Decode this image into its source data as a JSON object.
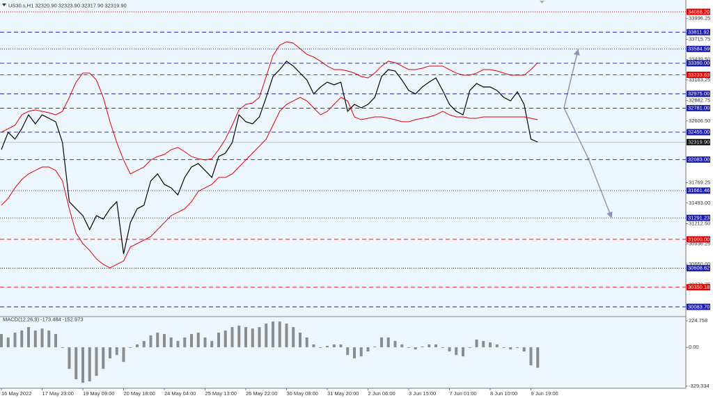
{
  "chart_data": [
    {
      "type": "line",
      "title": "US30.s,H1 32320.90 32323.90 32317.90 32319.90",
      "categories": [
        "16 May 2022",
        null,
        null,
        null,
        null,
        null,
        "17 May 23:00",
        null,
        null,
        null,
        null,
        null,
        "19 May 09:00",
        null,
        null,
        null,
        null,
        null,
        "20 May 18:00",
        null,
        null,
        null,
        null,
        null,
        "24 May 04:00",
        null,
        null,
        null,
        null,
        null,
        "25 May 13:00",
        null,
        null,
        null,
        null,
        null,
        "26 May 22:00",
        null,
        null,
        null,
        null,
        null,
        "30 May 08:00",
        null,
        null,
        null,
        null,
        null,
        "31 May 20:00",
        null,
        null,
        null,
        null,
        null,
        "2 Jun 06:00",
        null,
        null,
        null,
        null,
        null,
        "3 Jun 15:00",
        null,
        null,
        null,
        null,
        null,
        "7 Jun 01:00",
        null,
        null,
        null,
        null,
        null,
        "8 Jun 10:00",
        null,
        null,
        null,
        null,
        null,
        "9 Jun 19:00",
        null
      ],
      "series": [
        {
          "color": "#000000",
          "values": [
            32218,
            32454,
            32360,
            32502,
            32690,
            32568,
            32690,
            32643,
            32596,
            32313,
            31510,
            31415,
            31321,
            31132,
            31321,
            31274,
            31415,
            31510,
            30802,
            31227,
            31415,
            31463,
            31793,
            31888,
            31746,
            31699,
            31604,
            31840,
            31982,
            32029,
            31935,
            31840,
            32124,
            32171,
            32313,
            32690,
            32596,
            32568,
            32662,
            32927,
            33210,
            33304,
            33418,
            33352,
            33257,
            33163,
            32974,
            33068,
            33134,
            33097,
            33134,
            32738,
            32832,
            32785,
            32832,
            32927,
            33210,
            33304,
            33285,
            33163,
            33021,
            32974,
            33068,
            33134,
            33191,
            33021,
            32832,
            32738,
            32690,
            33021,
            33115,
            33068,
            33068,
            33021,
            32927,
            32879,
            33002,
            32832,
            32360,
            32319.9
          ]
        },
        {
          "color": "#e00000",
          "values": [
            32454,
            32502,
            32549,
            32690,
            32738,
            32757,
            32738,
            32719,
            32690,
            32738,
            32927,
            33134,
            33257,
            33257,
            33163,
            32927,
            32596,
            32313,
            32077,
            31888,
            31935,
            31982,
            32077,
            32124,
            32152,
            32218,
            32247,
            32190,
            32124,
            32095,
            32077,
            32095,
            32218,
            32360,
            32549,
            32757,
            32832,
            32851,
            32927,
            33210,
            33493,
            33635,
            33682,
            33663,
            33588,
            33512,
            33474,
            33418,
            33352,
            33304,
            33304,
            33285,
            33257,
            33210,
            33191,
            33257,
            33352,
            33418,
            33399,
            33352,
            33304,
            33304,
            33323,
            33352,
            33352,
            33352,
            33304,
            33257,
            33229,
            33229,
            33257,
            33304,
            33304,
            33285,
            33257,
            33229,
            33229,
            33229,
            33304,
            33399
          ]
        },
        {
          "color": "#e00000",
          "values": [
            31463,
            31557,
            31699,
            31812,
            31888,
            31935,
            31982,
            31982,
            31935,
            31793,
            31415,
            31085,
            30943,
            30849,
            30735,
            30660,
            30613,
            30660,
            30707,
            30896,
            30943,
            30990,
            31038,
            31132,
            31227,
            31321,
            31368,
            31415,
            31510,
            31652,
            31699,
            31746,
            31840,
            31840,
            31888,
            31982,
            32077,
            32171,
            32265,
            32360,
            32549,
            32738,
            32832,
            32879,
            32927,
            32879,
            32785,
            32690,
            32738,
            32832,
            32927,
            32879,
            32662,
            32624,
            32643,
            32662,
            32662,
            32643,
            32624,
            32596,
            32596,
            32624,
            32643,
            32662,
            32690,
            32738,
            32690,
            32662,
            32662,
            32643,
            32643,
            32662,
            32662,
            32662,
            32662,
            32662,
            32662,
            32662,
            32643,
            32624
          ]
        }
      ],
      "ylim": [
        29970.4,
        34201.5
      ],
      "yticks": [
        33996.25,
        33715.75,
        {
          "value": 33439.5,
          "label": "33439.50"
        },
        33163.25,
        32882.75,
        {
          "value": 32606.5,
          "label": "32606.50"
        },
        31769.25,
        {
          "value": 31493,
          "label": "31493.00"
        },
        {
          "value": 31212.5,
          "label": "31212.50"
        },
        30936.25,
        {
          "value": 30660,
          "label": "30660.00"
        },
        30379.75
      ],
      "levels": [
        {
          "value": 34088.2,
          "label": "34088.20",
          "color": "#e00000",
          "style": "dotted"
        },
        {
          "value": 33811.92,
          "label": "33811.92",
          "color": "#1a1aa8",
          "style": "dashed"
        },
        {
          "value": 33584.59,
          "label": "33584.59",
          "color": "#1a1aa8",
          "style": "dotted"
        },
        {
          "value": 33390,
          "label": "33390.00",
          "color": "#1a1aa8",
          "style": "dashed"
        },
        {
          "value": 33233.63,
          "label": "33233.63",
          "color": "#e00000",
          "style": "dashed"
        },
        {
          "value": 32975,
          "label": "32975.00",
          "color": "#1a1aa8",
          "style": "dashed"
        },
        {
          "value": 32781,
          "label": "32781.00",
          "color": "#1a1aa8",
          "style": "dashed"
        },
        {
          "value": 32455,
          "label": "32455.00",
          "color": "#1a1aa8",
          "style": "dashed"
        },
        {
          "value": 32319.9,
          "label": "32319.90",
          "color": "#000000",
          "style": "solid"
        },
        {
          "value": 32083,
          "label": "32083.00",
          "color": "#1a1aa8",
          "style": "dashed"
        },
        {
          "value": 31661.46,
          "label": "31661.46",
          "color": "#1a1aa8",
          "style": "dotted"
        },
        {
          "value": 31291.23,
          "label": "31291.23",
          "color": "#1a1aa8",
          "style": "dotted"
        },
        {
          "value": 31000,
          "label": "31000.00",
          "color": "#e00000",
          "style": "dashed"
        },
        {
          "value": 30608.62,
          "label": "30608.62",
          "color": "#1a1aa8",
          "style": "dotted"
        },
        {
          "value": 30350.18,
          "label": "30350.18",
          "color": "#e00000",
          "style": "dashed"
        },
        {
          "value": 30083.7,
          "label": "30083.70",
          "color": "#1a1aa8",
          "style": "dashed"
        }
      ]
    },
    {
      "type": "bar",
      "title": "MACD(12,26,9) -173.484 -152.973",
      "color": "#8c8c8c",
      "values": [
        112,
        83,
        124,
        142,
        171,
        142,
        159,
        142,
        112,
        -6,
        -183,
        -271,
        -301,
        -289,
        -242,
        -183,
        -94,
        -65,
        -124,
        -6,
        24,
        53,
        100,
        124,
        112,
        83,
        53,
        83,
        112,
        124,
        83,
        53,
        124,
        142,
        171,
        183,
        171,
        159,
        171,
        201,
        218,
        218,
        201,
        171,
        124,
        83,
        24,
        -6,
        12,
        24,
        24,
        -65,
        -94,
        -77,
        -35,
        6,
        83,
        83,
        53,
        24,
        -6,
        -18,
        6,
        24,
        24,
        -6,
        -35,
        -65,
        -77,
        -6,
        65,
        53,
        41,
        24,
        -6,
        -18,
        -6,
        -35,
        -153,
        -173.484
      ],
      "ylim": [
        -418,
        254
      ],
      "yticks": [
        224.758,
        {
          "value": 0,
          "label": "0.00"
        },
        -329.334
      ]
    }
  ]
}
